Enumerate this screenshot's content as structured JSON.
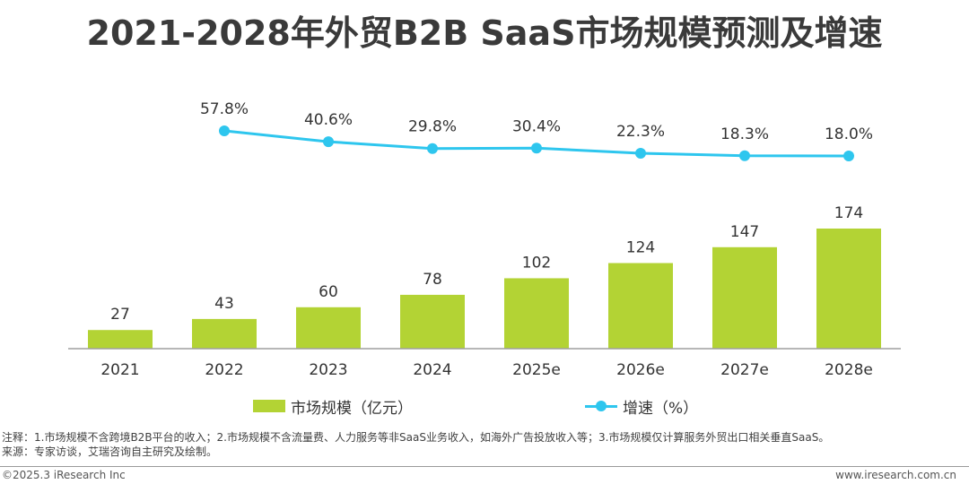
{
  "title": "2021-2028年外贸B2B SaaS市场规模预测及增速",
  "chart_data": {
    "type": "bar",
    "title": "2021-2028年外贸B2B SaaS市场规模预测及增速",
    "categories": [
      "2021",
      "2022",
      "2023",
      "2024",
      "2025e",
      "2026e",
      "2027e",
      "2028e"
    ],
    "series": [
      {
        "name": "市场规模（亿元）",
        "type": "bar",
        "values": [
          27,
          43,
          60,
          78,
          102,
          124,
          147,
          174
        ],
        "labels": [
          "27",
          "43",
          "60",
          "78",
          "102",
          "124",
          "147",
          "174"
        ]
      },
      {
        "name": "增速（%）",
        "type": "line",
        "x": [
          "2022",
          "2023",
          "2024",
          "2025e",
          "2026e",
          "2027e",
          "2028e"
        ],
        "values": [
          57.8,
          40.6,
          29.8,
          30.4,
          22.3,
          18.3,
          18.0
        ],
        "labels": [
          "57.8%",
          "40.6%",
          "29.8%",
          "30.4%",
          "22.3%",
          "18.3%",
          "18.0%"
        ]
      }
    ],
    "legend_position": "bottom",
    "grid": false
  },
  "colors": {
    "bar": "#b3d334",
    "line": "#2ec6ee",
    "axis": "#9f9f9f",
    "text": "#333333",
    "title": "#3a3a3a"
  },
  "legend": {
    "bar_label": "市场规模（亿元）",
    "line_label": "增速（%）"
  },
  "notes": {
    "line1": "注释：1.市场规模不含跨境B2B平台的收入；2.市场规模不含流量费、人力服务等非SaaS业务收入，如海外广告投放收入等；3.市场规模仅计算服务外贸出口相关垂直SaaS。",
    "line2": "来源：专家访谈，艾瑞咨询自主研究及绘制。"
  },
  "footer": {
    "copyright": "©2025.3 iResearch Inc",
    "website": "www.iresearch.com.cn"
  }
}
